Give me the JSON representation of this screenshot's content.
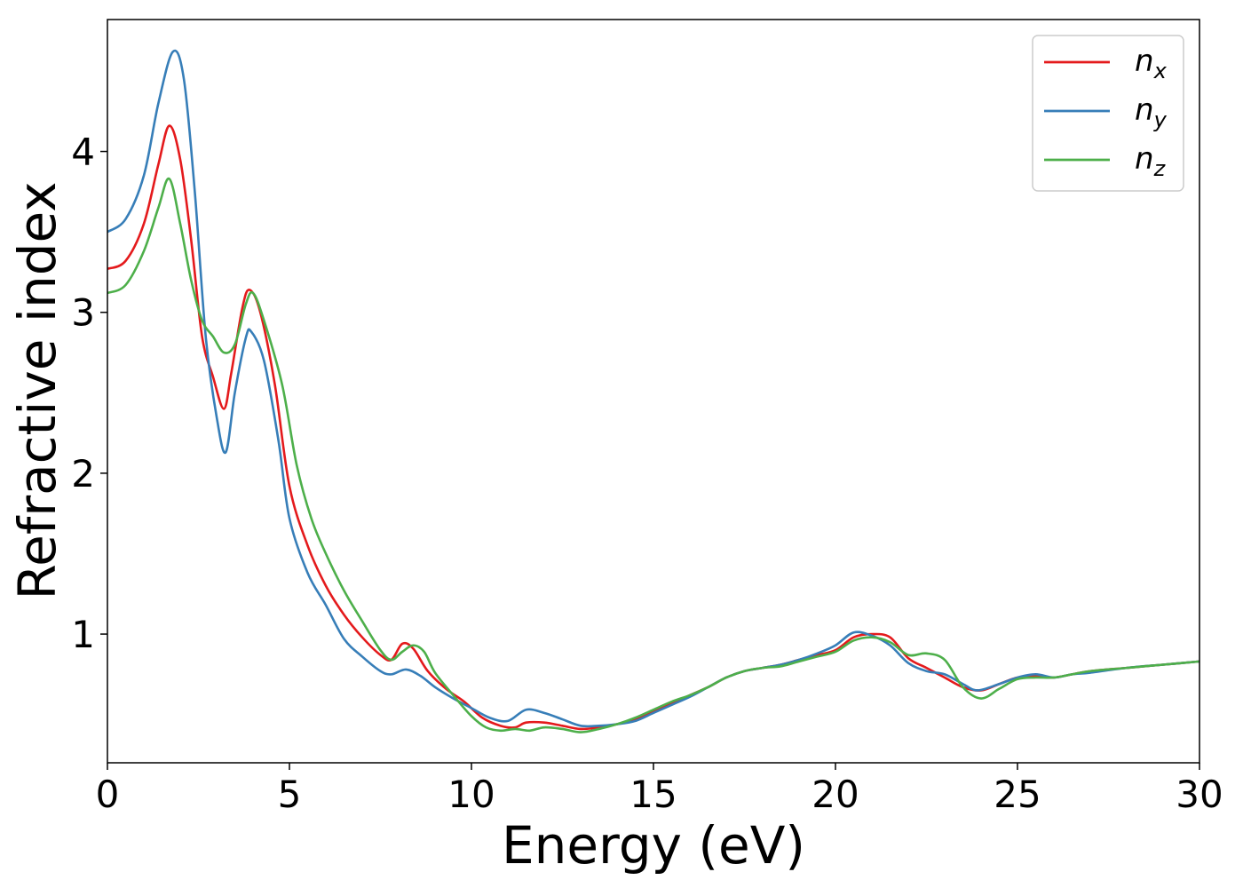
{
  "chart_data": {
    "type": "line",
    "title": "",
    "xlabel": "Energy (eV)",
    "ylabel": "Refractive index",
    "xlim": [
      0,
      30
    ],
    "ylim": [
      0.2,
      4.82
    ],
    "xticks": [
      0,
      5,
      10,
      15,
      20,
      25,
      30
    ],
    "yticks": [
      1,
      2,
      3,
      4
    ],
    "grid": false,
    "legend_position": "top-right",
    "series": [
      {
        "name": "n",
        "subscript": "x",
        "color": "#e41a1c",
        "points": [
          [
            0,
            3.27
          ],
          [
            0.5,
            3.32
          ],
          [
            1.0,
            3.55
          ],
          [
            1.4,
            3.92
          ],
          [
            1.7,
            4.16
          ],
          [
            2.0,
            3.95
          ],
          [
            2.3,
            3.45
          ],
          [
            2.6,
            2.85
          ],
          [
            2.9,
            2.6
          ],
          [
            3.2,
            2.4
          ],
          [
            3.4,
            2.62
          ],
          [
            3.7,
            3.02
          ],
          [
            3.9,
            3.14
          ],
          [
            4.2,
            3.0
          ],
          [
            4.6,
            2.55
          ],
          [
            5.0,
            1.92
          ],
          [
            5.5,
            1.55
          ],
          [
            6.0,
            1.3
          ],
          [
            6.5,
            1.12
          ],
          [
            7.0,
            0.98
          ],
          [
            7.5,
            0.87
          ],
          [
            7.8,
            0.84
          ],
          [
            8.1,
            0.94
          ],
          [
            8.4,
            0.91
          ],
          [
            8.8,
            0.77
          ],
          [
            9.3,
            0.66
          ],
          [
            9.8,
            0.58
          ],
          [
            10.3,
            0.48
          ],
          [
            10.8,
            0.43
          ],
          [
            11.2,
            0.42
          ],
          [
            11.5,
            0.45
          ],
          [
            12.0,
            0.45
          ],
          [
            12.5,
            0.43
          ],
          [
            13.0,
            0.41
          ],
          [
            13.5,
            0.42
          ],
          [
            14.0,
            0.44
          ],
          [
            14.5,
            0.47
          ],
          [
            15.0,
            0.52
          ],
          [
            15.5,
            0.57
          ],
          [
            16.0,
            0.62
          ],
          [
            16.5,
            0.67
          ],
          [
            17.0,
            0.73
          ],
          [
            17.5,
            0.77
          ],
          [
            18.0,
            0.79
          ],
          [
            18.5,
            0.81
          ],
          [
            19.0,
            0.84
          ],
          [
            19.5,
            0.87
          ],
          [
            20.0,
            0.9
          ],
          [
            20.5,
            0.98
          ],
          [
            21.0,
            1.0
          ],
          [
            21.5,
            0.98
          ],
          [
            22.0,
            0.85
          ],
          [
            22.5,
            0.79
          ],
          [
            23.0,
            0.73
          ],
          [
            23.5,
            0.67
          ],
          [
            24.0,
            0.65
          ],
          [
            24.5,
            0.69
          ],
          [
            25.0,
            0.73
          ],
          [
            25.5,
            0.74
          ],
          [
            26.0,
            0.73
          ],
          [
            26.5,
            0.75
          ],
          [
            27.0,
            0.77
          ],
          [
            28.0,
            0.79
          ],
          [
            29.0,
            0.81
          ],
          [
            30.0,
            0.83
          ]
        ]
      },
      {
        "name": "n",
        "subscript": "y",
        "color": "#377eb8",
        "points": [
          [
            0,
            3.5
          ],
          [
            0.5,
            3.58
          ],
          [
            1.0,
            3.85
          ],
          [
            1.4,
            4.3
          ],
          [
            1.8,
            4.62
          ],
          [
            2.1,
            4.45
          ],
          [
            2.4,
            3.75
          ],
          [
            2.7,
            2.85
          ],
          [
            3.0,
            2.35
          ],
          [
            3.25,
            2.13
          ],
          [
            3.5,
            2.5
          ],
          [
            3.8,
            2.84
          ],
          [
            3.95,
            2.88
          ],
          [
            4.3,
            2.7
          ],
          [
            4.7,
            2.2
          ],
          [
            5.0,
            1.72
          ],
          [
            5.5,
            1.38
          ],
          [
            6.0,
            1.18
          ],
          [
            6.5,
            0.97
          ],
          [
            7.0,
            0.86
          ],
          [
            7.5,
            0.77
          ],
          [
            7.8,
            0.75
          ],
          [
            8.2,
            0.78
          ],
          [
            8.6,
            0.74
          ],
          [
            9.0,
            0.67
          ],
          [
            9.5,
            0.6
          ],
          [
            10.0,
            0.54
          ],
          [
            10.5,
            0.48
          ],
          [
            11.0,
            0.46
          ],
          [
            11.5,
            0.53
          ],
          [
            12.0,
            0.51
          ],
          [
            12.5,
            0.47
          ],
          [
            13.0,
            0.43
          ],
          [
            13.5,
            0.43
          ],
          [
            14.0,
            0.44
          ],
          [
            14.5,
            0.46
          ],
          [
            15.0,
            0.51
          ],
          [
            15.5,
            0.56
          ],
          [
            16.0,
            0.61
          ],
          [
            16.5,
            0.67
          ],
          [
            17.0,
            0.73
          ],
          [
            17.5,
            0.77
          ],
          [
            18.0,
            0.79
          ],
          [
            18.5,
            0.81
          ],
          [
            19.0,
            0.84
          ],
          [
            19.5,
            0.88
          ],
          [
            20.0,
            0.93
          ],
          [
            20.5,
            1.01
          ],
          [
            21.0,
            0.99
          ],
          [
            21.5,
            0.93
          ],
          [
            22.0,
            0.82
          ],
          [
            22.5,
            0.77
          ],
          [
            23.0,
            0.75
          ],
          [
            23.5,
            0.69
          ],
          [
            23.9,
            0.65
          ],
          [
            24.5,
            0.69
          ],
          [
            25.0,
            0.73
          ],
          [
            25.5,
            0.75
          ],
          [
            26.0,
            0.73
          ],
          [
            26.5,
            0.75
          ],
          [
            27.0,
            0.76
          ],
          [
            28.0,
            0.79
          ],
          [
            29.0,
            0.81
          ],
          [
            30.0,
            0.83
          ]
        ]
      },
      {
        "name": "n",
        "subscript": "z",
        "color": "#4daf4a",
        "points": [
          [
            0,
            3.12
          ],
          [
            0.5,
            3.17
          ],
          [
            1.0,
            3.38
          ],
          [
            1.4,
            3.65
          ],
          [
            1.7,
            3.83
          ],
          [
            2.0,
            3.55
          ],
          [
            2.3,
            3.2
          ],
          [
            2.6,
            2.95
          ],
          [
            2.9,
            2.85
          ],
          [
            3.2,
            2.75
          ],
          [
            3.5,
            2.8
          ],
          [
            3.8,
            3.05
          ],
          [
            4.0,
            3.12
          ],
          [
            4.3,
            2.95
          ],
          [
            4.8,
            2.55
          ],
          [
            5.2,
            2.05
          ],
          [
            5.6,
            1.72
          ],
          [
            6.0,
            1.5
          ],
          [
            6.5,
            1.27
          ],
          [
            7.0,
            1.08
          ],
          [
            7.5,
            0.9
          ],
          [
            7.8,
            0.84
          ],
          [
            8.1,
            0.89
          ],
          [
            8.4,
            0.93
          ],
          [
            8.7,
            0.89
          ],
          [
            9.0,
            0.76
          ],
          [
            9.5,
            0.62
          ],
          [
            10.0,
            0.49
          ],
          [
            10.4,
            0.42
          ],
          [
            10.8,
            0.4
          ],
          [
            11.2,
            0.41
          ],
          [
            11.6,
            0.4
          ],
          [
            12.0,
            0.42
          ],
          [
            12.5,
            0.41
          ],
          [
            13.0,
            0.39
          ],
          [
            13.5,
            0.41
          ],
          [
            14.0,
            0.44
          ],
          [
            14.5,
            0.48
          ],
          [
            15.0,
            0.53
          ],
          [
            15.5,
            0.58
          ],
          [
            16.0,
            0.62
          ],
          [
            16.5,
            0.67
          ],
          [
            17.0,
            0.73
          ],
          [
            17.5,
            0.77
          ],
          [
            18.0,
            0.79
          ],
          [
            18.5,
            0.8
          ],
          [
            19.0,
            0.83
          ],
          [
            19.5,
            0.86
          ],
          [
            20.0,
            0.89
          ],
          [
            20.5,
            0.96
          ],
          [
            21.0,
            0.98
          ],
          [
            21.5,
            0.95
          ],
          [
            22.0,
            0.87
          ],
          [
            22.5,
            0.88
          ],
          [
            23.0,
            0.84
          ],
          [
            23.5,
            0.67
          ],
          [
            24.0,
            0.6
          ],
          [
            24.5,
            0.66
          ],
          [
            25.0,
            0.72
          ],
          [
            25.5,
            0.73
          ],
          [
            26.0,
            0.73
          ],
          [
            26.5,
            0.75
          ],
          [
            27.0,
            0.77
          ],
          [
            28.0,
            0.79
          ],
          [
            29.0,
            0.81
          ],
          [
            30.0,
            0.83
          ]
        ]
      }
    ]
  }
}
